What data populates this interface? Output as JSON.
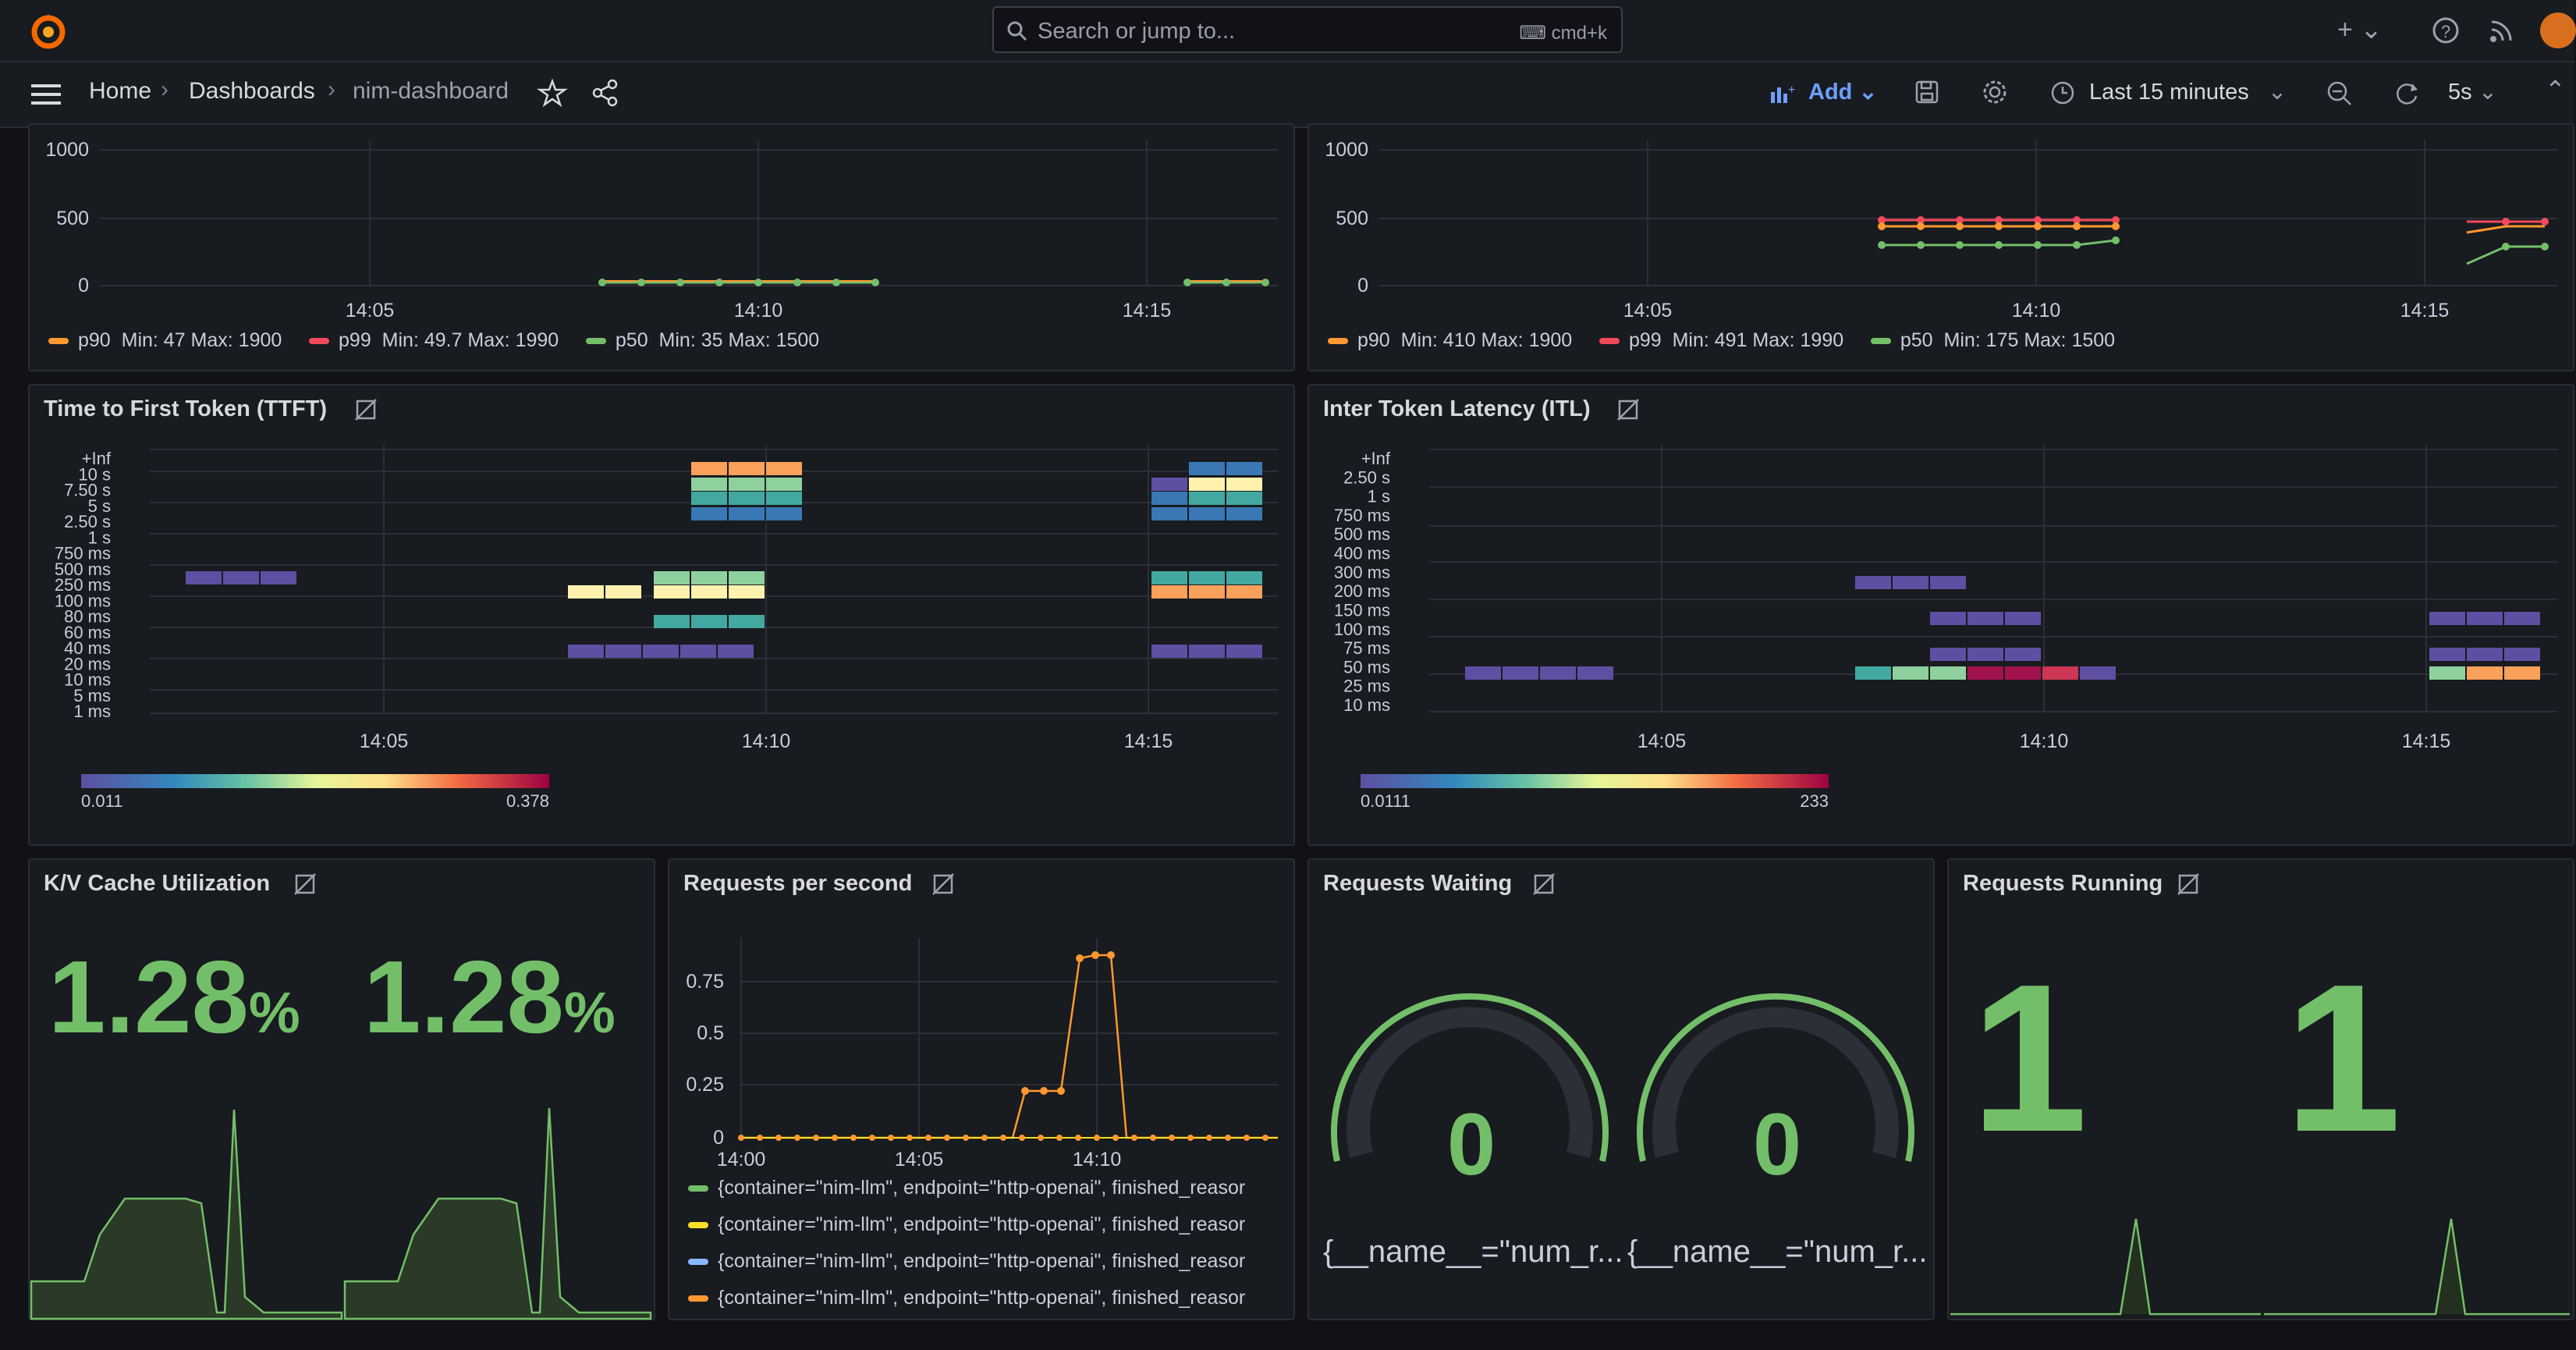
{
  "topbar": {
    "search_placeholder": "Search or jump to...",
    "search_shortcut": "cmd+k"
  },
  "breadcrumb": {
    "home": "Home",
    "dashboards": "Dashboards",
    "current": "nim-dashboard"
  },
  "toolbar": {
    "add_label": "Add",
    "time_range": "Last 15 minutes",
    "refresh_interval": "5s"
  },
  "panels": {
    "top_left": {
      "y_ticks": [
        "1000",
        "500",
        "0"
      ],
      "x_ticks": [
        "14:05",
        "14:10",
        "14:15"
      ],
      "legend": [
        {
          "name": "p90",
          "stats": "Min: 47   Max: 1900",
          "color": "#ff9830"
        },
        {
          "name": "p99",
          "stats": "Min: 49.7   Max: 1990",
          "color": "#f2495c"
        },
        {
          "name": "p50",
          "stats": "Min: 35   Max: 1500",
          "color": "#73bf69"
        }
      ]
    },
    "top_right": {
      "y_ticks": [
        "1000",
        "500",
        "0"
      ],
      "x_ticks": [
        "14:05",
        "14:10",
        "14:15"
      ],
      "legend": [
        {
          "name": "p90",
          "stats": "Min: 410   Max: 1900",
          "color": "#ff9830"
        },
        {
          "name": "p99",
          "stats": "Min: 491   Max: 1990",
          "color": "#f2495c"
        },
        {
          "name": "p50",
          "stats": "Min: 175   Max: 1500",
          "color": "#73bf69"
        }
      ]
    },
    "ttft": {
      "title": "Time to First Token (TTFT)",
      "y_buckets": [
        "+Inf",
        "10 s",
        "7.50 s",
        "5 s",
        "2.50 s",
        "1 s",
        "750 ms",
        "500 ms",
        "250 ms",
        "100 ms",
        "80 ms",
        "60 ms",
        "40 ms",
        "20 ms",
        "10 ms",
        "5 ms",
        "1 ms"
      ],
      "x_ticks": [
        "14:05",
        "14:10",
        "14:15"
      ],
      "scale_min": "0.011",
      "scale_max": "0.378"
    },
    "itl": {
      "title": "Inter Token Latency (ITL)",
      "y_buckets": [
        "+Inf",
        "2.50 s",
        "1 s",
        "750 ms",
        "500 ms",
        "400 ms",
        "300 ms",
        "200 ms",
        "150 ms",
        "100 ms",
        "75 ms",
        "50 ms",
        "25 ms",
        "10 ms"
      ],
      "x_ticks": [
        "14:05",
        "14:10",
        "14:15"
      ],
      "scale_min": "0.0111",
      "scale_max": "233"
    },
    "kv": {
      "title": "K/V Cache Utilization",
      "stats": [
        {
          "value": "1.28",
          "unit": "%"
        },
        {
          "value": "1.28",
          "unit": "%"
        }
      ]
    },
    "rps": {
      "title": "Requests per second",
      "y_ticks": [
        "0.75",
        "0.5",
        "0.25",
        "0"
      ],
      "x_ticks": [
        "14:00",
        "14:05",
        "14:10"
      ],
      "legend": [
        {
          "label": "{container=\"nim-llm\", endpoint=\"http-openai\", finished_reasor",
          "color": "#73bf69"
        },
        {
          "label": "{container=\"nim-llm\", endpoint=\"http-openai\", finished_reasor",
          "color": "#fade2a"
        },
        {
          "label": "{container=\"nim-llm\", endpoint=\"http-openai\", finished_reasor",
          "color": "#8ab8ff"
        },
        {
          "label": "{container=\"nim-llm\", endpoint=\"http-openai\", finished_reasor",
          "color": "#ff9830"
        }
      ]
    },
    "waiting": {
      "title": "Requests Waiting",
      "gauges": [
        {
          "value": "0",
          "label": "{__name__=\"num_r..."
        },
        {
          "value": "0",
          "label": "{__name__=\"num_r..."
        }
      ]
    },
    "running": {
      "title": "Requests Running",
      "stats": [
        {
          "value": "1"
        },
        {
          "value": "1"
        }
      ]
    }
  },
  "colors": {
    "green": "#73bf69",
    "orange": "#ff9830",
    "red": "#f2495c",
    "yellow": "#fade2a",
    "panel_bg": "#181b1f"
  }
}
